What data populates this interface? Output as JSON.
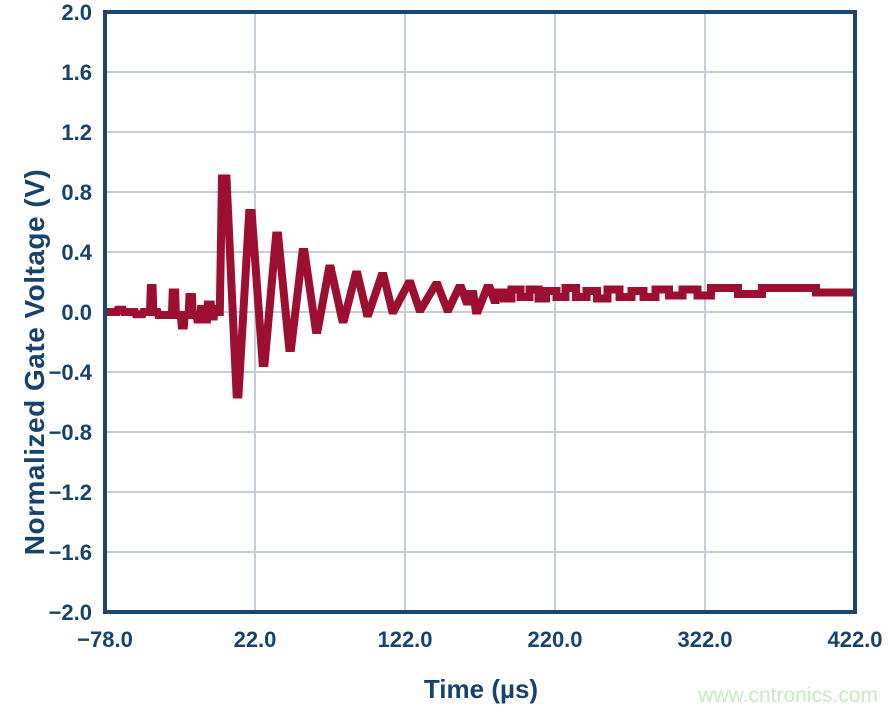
{
  "watermark": {
    "text": "www.cntronics.com",
    "color": "#c7ebc0"
  },
  "chart_data": {
    "type": "line",
    "title": "",
    "xlabel": "Time (µs)",
    "ylabel": "Normalized Gate Voltage (V)",
    "x_tick_labels": [
      "−78.0",
      "22.0",
      "122.0",
      "220.0",
      "322.0",
      "422.0"
    ],
    "y_tick_labels": [
      "2.0",
      "1.6",
      "1.2",
      "0.8",
      "0.4",
      "0.0",
      "−0.4",
      "−0.8",
      "−1.2",
      "−1.6",
      "−2.0"
    ],
    "xlim": [
      -78,
      422
    ],
    "ylim": [
      -2,
      2
    ],
    "grid": true,
    "legend": "none",
    "colors": {
      "trace": "#9c0f30",
      "axis": "#1a476e",
      "text": "#16436d",
      "grid": "#c3ced9"
    },
    "series": [
      {
        "name": "normalized-gate-voltage",
        "points": [
          [
            -78,
            0
          ],
          [
            -70,
            0
          ],
          [
            -69.5,
            0.015
          ],
          [
            -66,
            0.015
          ],
          [
            -65.5,
            0
          ],
          [
            -58,
            0
          ],
          [
            -57.5,
            -0.015
          ],
          [
            -53,
            -0.015
          ],
          [
            -52.5,
            0
          ],
          [
            -48,
            0
          ],
          [
            -47.5,
            0.16
          ],
          [
            -46.3,
            0.16
          ],
          [
            -45.8,
            0
          ],
          [
            -43,
            0
          ],
          [
            -42.5,
            -0.02
          ],
          [
            -38,
            -0.02
          ],
          [
            -33.4,
            -0.02
          ],
          [
            -32.9,
            0.13
          ],
          [
            -31.2,
            0.13
          ],
          [
            -30.7,
            -0.02
          ],
          [
            -27.4,
            -0.02
          ],
          [
            -26.9,
            -0.09
          ],
          [
            -25.4,
            -0.09
          ],
          [
            -24.9,
            -0.02
          ],
          [
            -22.2,
            -0.02
          ],
          [
            -21.7,
            0.1
          ],
          [
            -20,
            0.1
          ],
          [
            -19.5,
            -0.02
          ],
          [
            -17,
            -0.02
          ],
          [
            -16.5,
            -0.05
          ],
          [
            -14.5,
            -0.05
          ],
          [
            -14,
            0.02
          ],
          [
            -12,
            0.02
          ],
          [
            -11.5,
            -0.05
          ],
          [
            -10,
            -0.05
          ],
          [
            -9.5,
            0.05
          ],
          [
            -7.5,
            0.05
          ],
          [
            -7,
            -0.03
          ],
          [
            -5.5,
            -0.03
          ],
          [
            -5,
            0.02
          ],
          [
            -3.5,
            0.02
          ],
          [
            -3,
            0
          ],
          [
            -1.5,
            0
          ],
          [
            0,
            0.89
          ],
          [
            3,
            0.89
          ],
          [
            9.7,
            -0.55
          ],
          [
            11,
            -0.55
          ],
          [
            18.1,
            0.66
          ],
          [
            19.8,
            0.66
          ],
          [
            27.1,
            -0.34
          ],
          [
            28.4,
            -0.34
          ],
          [
            36.1,
            0.51
          ],
          [
            37.4,
            0.51
          ],
          [
            44.8,
            -0.24
          ],
          [
            46.1,
            -0.24
          ],
          [
            53.7,
            0.4
          ],
          [
            55,
            0.4
          ],
          [
            62.5,
            -0.12
          ],
          [
            63.8,
            -0.12
          ],
          [
            71.3,
            0.29
          ],
          [
            72.6,
            0.29
          ],
          [
            80.1,
            -0.05
          ],
          [
            81.4,
            -0.05
          ],
          [
            89.1,
            0.25
          ],
          [
            90.4,
            0.25
          ],
          [
            96.5,
            -0.01
          ],
          [
            97.8,
            -0.01
          ],
          [
            106.3,
            0.24
          ],
          [
            107.8,
            0.24
          ],
          [
            113.4,
            0.01
          ],
          [
            114.7,
            0.01
          ],
          [
            124.3,
            0.19
          ],
          [
            125.8,
            0.19
          ],
          [
            131.4,
            0.02
          ],
          [
            132.7,
            0.02
          ],
          [
            142.3,
            0.18
          ],
          [
            143.8,
            0.18
          ],
          [
            149.9,
            0.02
          ],
          [
            151.2,
            0.02
          ],
          [
            157.8,
            0.16
          ],
          [
            159.6,
            0.16
          ],
          [
            162.8,
            0.07
          ],
          [
            164.8,
            0.07
          ],
          [
            165.3,
            0.12
          ],
          [
            167.6,
            0.12
          ],
          [
            169.2,
            0.01
          ],
          [
            170.7,
            0.01
          ],
          [
            176.6,
            0.16
          ],
          [
            178.6,
            0.16
          ],
          [
            181.4,
            0.08
          ],
          [
            182.6,
            0.08
          ],
          [
            183.2,
            0.13
          ],
          [
            188,
            0.13
          ],
          [
            188,
            0.09
          ],
          [
            193,
            0.09
          ],
          [
            193,
            0.15
          ],
          [
            199,
            0.15
          ],
          [
            199,
            0.1
          ],
          [
            205,
            0.1
          ],
          [
            205,
            0.15
          ],
          [
            211,
            0.15
          ],
          [
            211,
            0.09
          ],
          [
            216,
            0.09
          ],
          [
            216,
            0.14
          ],
          [
            223,
            0.14
          ],
          [
            223,
            0.1
          ],
          [
            229,
            0.1
          ],
          [
            229,
            0.16
          ],
          [
            236,
            0.16
          ],
          [
            236,
            0.1
          ],
          [
            243,
            0.1
          ],
          [
            243,
            0.14
          ],
          [
            250,
            0.14
          ],
          [
            250,
            0.09
          ],
          [
            257,
            0.09
          ],
          [
            257,
            0.15
          ],
          [
            265,
            0.15
          ],
          [
            265,
            0.1
          ],
          [
            273,
            0.1
          ],
          [
            273,
            0.14
          ],
          [
            281,
            0.14
          ],
          [
            281,
            0.1
          ],
          [
            289,
            0.1
          ],
          [
            289,
            0.15
          ],
          [
            298,
            0.15
          ],
          [
            298,
            0.11
          ],
          [
            307,
            0.11
          ],
          [
            307,
            0.15
          ],
          [
            317,
            0.15
          ],
          [
            317,
            0.11
          ],
          [
            326,
            0.11
          ],
          [
            326,
            0.16
          ],
          [
            344,
            0.16
          ],
          [
            344,
            0.12
          ],
          [
            360,
            0.12
          ],
          [
            360,
            0.16
          ],
          [
            396,
            0.16
          ],
          [
            396,
            0.13
          ],
          [
            422,
            0.13
          ]
        ]
      }
    ]
  }
}
